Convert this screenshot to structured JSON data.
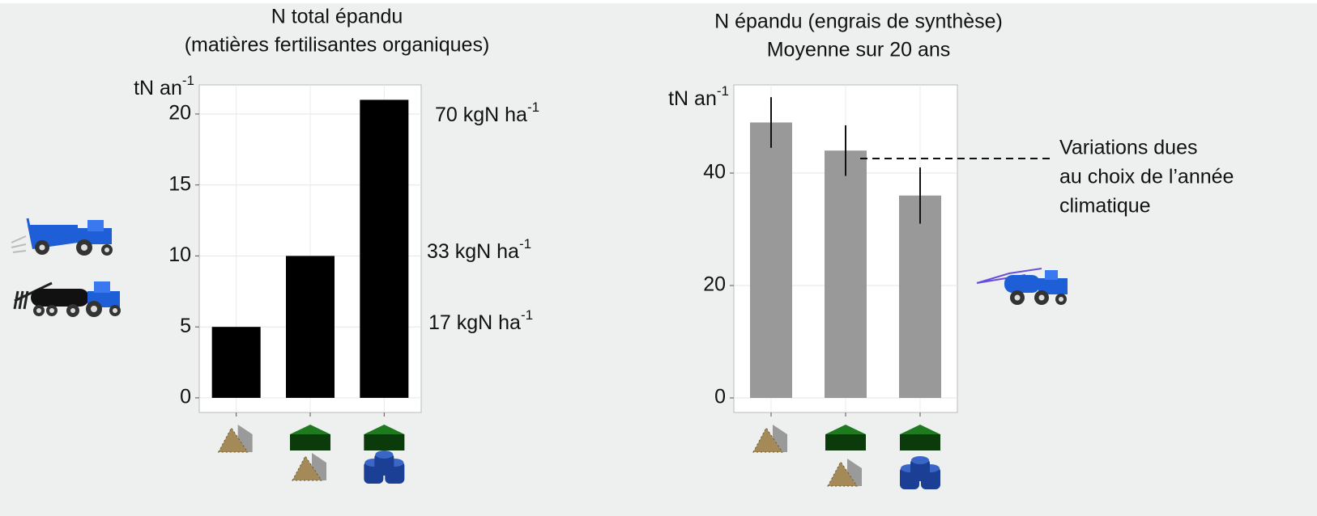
{
  "chart_data": [
    {
      "type": "bar",
      "title": "N total épandu",
      "subtitle": "(matières fertilisantes organiques)",
      "y_label": {
        "text": "tN an",
        "sup": "-1"
      },
      "categories": [
        null,
        null,
        null
      ],
      "values": [
        5,
        10,
        21
      ],
      "color": "#000000",
      "ylim": [
        -1.03,
        22.05
      ],
      "yticks": [
        0,
        5,
        10,
        15,
        20
      ],
      "grid": true,
      "annotations": [
        {
          "text": "70 kgN ha",
          "sup": "-1"
        },
        {
          "text": "33 kgN ha",
          "sup": "-1"
        },
        {
          "text": "17 kgN ha",
          "sup": "-1"
        }
      ]
    },
    {
      "type": "bar",
      "title": "N épandu (engrais de synthèse)",
      "subtitle": "Moyenne sur 20 ans",
      "y_label": {
        "text": "tN an",
        "sup": "-1"
      },
      "categories": [
        null,
        null,
        null
      ],
      "values": [
        49,
        44,
        36
      ],
      "errors": [
        4.5,
        4.5,
        5
      ],
      "color": "#999999",
      "ylim": [
        -2.59,
        55.68
      ],
      "yticks": [
        0,
        20,
        40
      ],
      "grid": true,
      "annotation": {
        "lines": [
          "Variations dues",
          "au choix de l’année",
          "climatique"
        ]
      }
    }
  ]
}
